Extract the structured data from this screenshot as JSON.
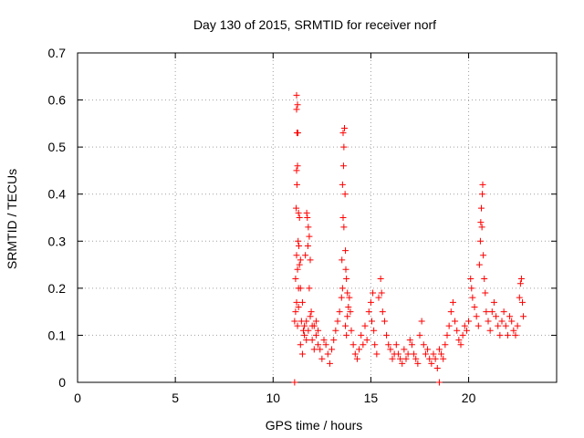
{
  "chart_data": {
    "type": "scatter",
    "title": "Day 130 of 2015, SRMTID for receiver norf",
    "xlabel": "GPS time / hours",
    "ylabel": "SRMTID / TECUs",
    "xlim": [
      0,
      24.5
    ],
    "ylim": [
      0,
      0.7
    ],
    "x_ticks": [
      0,
      5,
      10,
      15,
      20
    ],
    "y_ticks": [
      0,
      0.1,
      0.2,
      0.3,
      0.4,
      0.5,
      0.6,
      0.7
    ],
    "x_tick_labels": [
      "0",
      "5",
      "10",
      "15",
      "20"
    ],
    "y_tick_labels": [
      "0",
      "0.1",
      "0.2",
      "0.3",
      "0.4",
      "0.5",
      "0.6",
      "0.7"
    ],
    "grid": true,
    "marker_color": "#ff0000",
    "series": [
      {
        "name": "SRMTID",
        "marker": "plus",
        "points": [
          [
            11.2,
            0.61
          ],
          [
            11.25,
            0.59
          ],
          [
            11.2,
            0.58
          ],
          [
            11.22,
            0.53
          ],
          [
            11.27,
            0.53
          ],
          [
            11.25,
            0.46
          ],
          [
            11.2,
            0.45
          ],
          [
            11.22,
            0.42
          ],
          [
            11.18,
            0.37
          ],
          [
            11.3,
            0.36
          ],
          [
            11.35,
            0.35
          ],
          [
            11.28,
            0.3
          ],
          [
            11.32,
            0.29
          ],
          [
            11.2,
            0.27
          ],
          [
            11.4,
            0.26
          ],
          [
            11.35,
            0.25
          ],
          [
            11.25,
            0.24
          ],
          [
            11.15,
            0.22
          ],
          [
            11.3,
            0.2
          ],
          [
            11.2,
            0.17
          ],
          [
            11.15,
            0.15
          ],
          [
            11.1,
            0.13
          ],
          [
            11.25,
            0.12
          ],
          [
            11.3,
            0.16
          ],
          [
            11.4,
            0.2
          ],
          [
            11.5,
            0.17
          ],
          [
            11.45,
            0.13
          ],
          [
            11.55,
            0.11
          ],
          [
            11.6,
            0.12
          ],
          [
            11.7,
            0.13
          ],
          [
            11.75,
            0.35
          ],
          [
            11.8,
            0.33
          ],
          [
            11.72,
            0.36
          ],
          [
            11.85,
            0.31
          ],
          [
            11.78,
            0.29
          ],
          [
            11.65,
            0.27
          ],
          [
            11.9,
            0.26
          ],
          [
            11.85,
            0.2
          ],
          [
            11.95,
            0.15
          ],
          [
            12.0,
            0.12
          ],
          [
            11.4,
            0.08
          ],
          [
            11.5,
            0.06
          ],
          [
            11.6,
            0.1
          ],
          [
            11.7,
            0.09
          ],
          [
            11.8,
            0.11
          ],
          [
            11.9,
            0.14
          ],
          [
            12.0,
            0.09
          ],
          [
            12.1,
            0.07
          ],
          [
            12.2,
            0.1
          ],
          [
            12.3,
            0.08
          ],
          [
            12.1,
            0.12
          ],
          [
            12.2,
            0.13
          ],
          [
            12.3,
            0.11
          ],
          [
            12.4,
            0.07
          ],
          [
            12.5,
            0.05
          ],
          [
            12.6,
            0.09
          ],
          [
            12.7,
            0.08
          ],
          [
            12.8,
            0.06
          ],
          [
            12.9,
            0.04
          ],
          [
            13.0,
            0.07
          ],
          [
            13.1,
            0.09
          ],
          [
            13.2,
            0.11
          ],
          [
            13.3,
            0.13
          ],
          [
            13.4,
            0.15
          ],
          [
            13.5,
            0.18
          ],
          [
            13.55,
            0.2
          ],
          [
            13.52,
            0.26
          ],
          [
            13.58,
            0.35
          ],
          [
            13.55,
            0.42
          ],
          [
            13.6,
            0.46
          ],
          [
            13.62,
            0.5
          ],
          [
            13.58,
            0.53
          ],
          [
            13.65,
            0.54
          ],
          [
            13.68,
            0.4
          ],
          [
            13.62,
            0.33
          ],
          [
            13.7,
            0.28
          ],
          [
            13.72,
            0.24
          ],
          [
            13.75,
            0.22
          ],
          [
            13.8,
            0.19
          ],
          [
            13.85,
            0.16
          ],
          [
            13.7,
            0.12
          ],
          [
            13.75,
            0.1
          ],
          [
            13.8,
            0.14
          ],
          [
            13.9,
            0.18
          ],
          [
            13.95,
            0.15
          ],
          [
            14.0,
            0.11
          ],
          [
            14.1,
            0.08
          ],
          [
            14.2,
            0.06
          ],
          [
            14.3,
            0.05
          ],
          [
            14.4,
            0.07
          ],
          [
            14.5,
            0.1
          ],
          [
            14.6,
            0.08
          ],
          [
            14.7,
            0.12
          ],
          [
            14.8,
            0.09
          ],
          [
            14.9,
            0.15
          ],
          [
            15.0,
            0.17
          ],
          [
            15.1,
            0.19
          ],
          [
            15.05,
            0.13
          ],
          [
            15.15,
            0.11
          ],
          [
            15.2,
            0.08
          ],
          [
            15.3,
            0.06
          ],
          [
            15.4,
            0.18
          ],
          [
            15.5,
            0.22
          ],
          [
            15.55,
            0.19
          ],
          [
            15.6,
            0.15
          ],
          [
            15.7,
            0.13
          ],
          [
            15.8,
            0.1
          ],
          [
            15.9,
            0.08
          ],
          [
            16.0,
            0.07
          ],
          [
            16.1,
            0.05
          ],
          [
            16.2,
            0.06
          ],
          [
            16.3,
            0.08
          ],
          [
            16.4,
            0.06
          ],
          [
            16.5,
            0.05
          ],
          [
            16.6,
            0.04
          ],
          [
            16.7,
            0.07
          ],
          [
            16.8,
            0.05
          ],
          [
            16.9,
            0.06
          ],
          [
            17.0,
            0.09
          ],
          [
            17.1,
            0.08
          ],
          [
            17.2,
            0.06
          ],
          [
            17.3,
            0.05
          ],
          [
            17.4,
            0.04
          ],
          [
            17.5,
            0.1
          ],
          [
            17.6,
            0.13
          ],
          [
            17.7,
            0.08
          ],
          [
            17.8,
            0.06
          ],
          [
            17.9,
            0.07
          ],
          [
            18.0,
            0.05
          ],
          [
            18.1,
            0.04
          ],
          [
            18.2,
            0.06
          ],
          [
            18.3,
            0.05
          ],
          [
            18.4,
            0.03
          ],
          [
            18.5,
            0.07
          ],
          [
            18.6,
            0.06
          ],
          [
            18.7,
            0.05
          ],
          [
            18.8,
            0.08
          ],
          [
            18.9,
            0.1
          ],
          [
            19.0,
            0.12
          ],
          [
            19.1,
            0.15
          ],
          [
            19.2,
            0.17
          ],
          [
            19.3,
            0.13
          ],
          [
            19.4,
            0.11
          ],
          [
            19.5,
            0.09
          ],
          [
            19.6,
            0.08
          ],
          [
            19.7,
            0.1
          ],
          [
            19.8,
            0.12
          ],
          [
            19.9,
            0.11
          ],
          [
            20.0,
            0.13
          ],
          [
            20.1,
            0.22
          ],
          [
            20.15,
            0.2
          ],
          [
            20.2,
            0.18
          ],
          [
            20.3,
            0.16
          ],
          [
            20.4,
            0.14
          ],
          [
            20.5,
            0.12
          ],
          [
            20.55,
            0.25
          ],
          [
            20.6,
            0.3
          ],
          [
            20.62,
            0.34
          ],
          [
            20.65,
            0.37
          ],
          [
            20.7,
            0.4
          ],
          [
            20.72,
            0.42
          ],
          [
            20.68,
            0.33
          ],
          [
            20.75,
            0.27
          ],
          [
            20.8,
            0.22
          ],
          [
            20.85,
            0.19
          ],
          [
            20.9,
            0.15
          ],
          [
            21.0,
            0.13
          ],
          [
            21.1,
            0.11
          ],
          [
            21.2,
            0.15
          ],
          [
            21.3,
            0.17
          ],
          [
            21.4,
            0.14
          ],
          [
            21.5,
            0.12
          ],
          [
            21.6,
            0.1
          ],
          [
            21.7,
            0.13
          ],
          [
            21.8,
            0.15
          ],
          [
            21.9,
            0.12
          ],
          [
            22.0,
            0.1
          ],
          [
            22.1,
            0.14
          ],
          [
            22.2,
            0.13
          ],
          [
            22.3,
            0.11
          ],
          [
            22.4,
            0.1
          ],
          [
            22.5,
            0.12
          ],
          [
            22.6,
            0.18
          ],
          [
            22.65,
            0.21
          ],
          [
            22.7,
            0.22
          ],
          [
            22.75,
            0.17
          ],
          [
            22.8,
            0.14
          ],
          [
            11.1,
            0.0
          ],
          [
            18.5,
            0.0
          ]
        ]
      }
    ]
  }
}
